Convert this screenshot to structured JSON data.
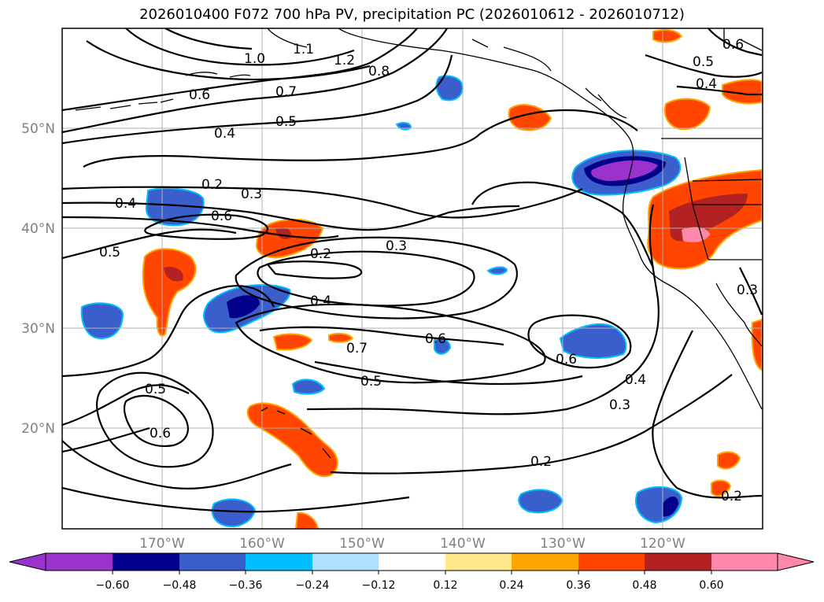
{
  "title": "2026010400 F072 700 hPa PV, precipitation PC (2026010612 - 2026010712)",
  "map": {
    "projection": "cylindrical",
    "lon_range": [
      -180,
      -110
    ],
    "lat_range": [
      10,
      60
    ],
    "lat_ticks": [
      "20°N",
      "30°N",
      "40°N",
      "50°N"
    ],
    "lon_ticks": [
      "170°W",
      "160°W",
      "150°W",
      "140°W",
      "130°W",
      "120°W"
    ],
    "grid": true
  },
  "contour_labels": [
    "1.0",
    "1.1",
    "1.2",
    "0.8",
    "0.7",
    "0.6",
    "0.5",
    "0.4",
    "0.2",
    "0.3",
    "0.4",
    "0.6",
    "0.5",
    "0.2",
    "0.3",
    "0.4",
    "0.7",
    "0.6",
    "0.5",
    "0.6",
    "0.5",
    "0.6",
    "0.4",
    "0.3",
    "0.2",
    "0.5",
    "0.4",
    "0.6",
    "0.3",
    "0.2"
  ],
  "colorbar": {
    "ticks": [
      "−0.60",
      "−0.48",
      "−0.36",
      "−0.24",
      "−0.12",
      "0.12",
      "0.24",
      "0.36",
      "0.48",
      "0.60"
    ],
    "colors": [
      "#9933cc",
      "#00008b",
      "#3a5fcd",
      "#00bfff",
      "#b0e0ff",
      "#ffffff",
      "#ffe88a",
      "#ffa500",
      "#ff4500",
      "#b22222",
      "#ff88aa",
      "#ff88aa"
    ],
    "extend": "both"
  }
}
